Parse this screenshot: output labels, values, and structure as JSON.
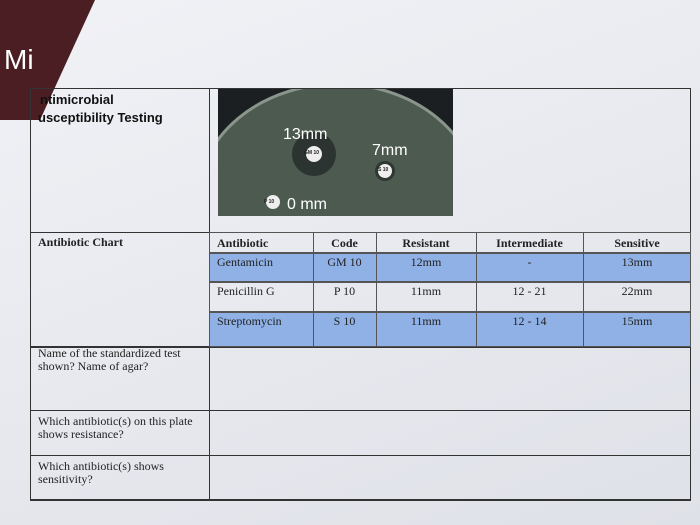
{
  "header": {
    "corner": "Mi",
    "title_line1": "ntimicrobial",
    "title_line2": "usceptibility Testing"
  },
  "plate": {
    "labels": [
      "13mm",
      "7mm",
      "0 mm"
    ],
    "disks": [
      "GM 10",
      "S 10",
      "P 10"
    ]
  },
  "table": {
    "label": "Antibiotic Chart",
    "columns": [
      "Antibiotic",
      "Code",
      "Resistant",
      "Intermediate",
      "Sensitive"
    ],
    "rows": [
      [
        "Gentamicin",
        "GM 10",
        "12mm",
        "-",
        "13mm"
      ],
      [
        "Penicillin G",
        "P 10",
        "11mm",
        "12 - 21",
        "22mm"
      ],
      [
        "Streptomycin",
        "S 10",
        "11mm",
        "12 - 14",
        "15mm"
      ]
    ]
  },
  "questions": [
    "Name of the standardized test shown? Name of agar?",
    "Which antibiotic(s) on this plate shows resistance?",
    "Which antibiotic(s) shows sensitivity?"
  ]
}
